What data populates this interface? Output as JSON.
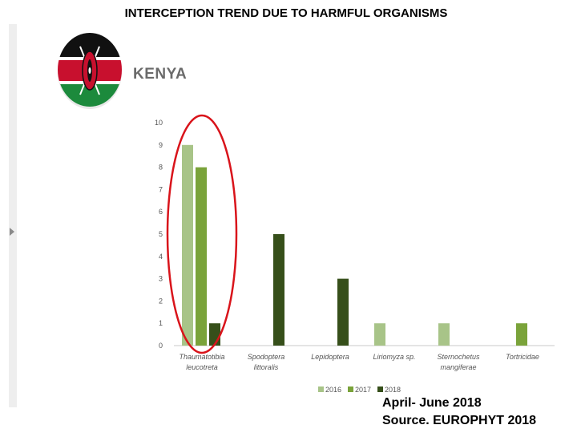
{
  "header": {
    "title": "INTERCEPTION TREND DUE TO HARMFUL ORGANISMS"
  },
  "flag": {
    "country": "KENYA",
    "colors": {
      "black": "#111111",
      "red": "#c8102e",
      "green": "#1c8a3c",
      "white": "#ffffff"
    }
  },
  "colors": {
    "series_2016": "#a8c488",
    "series_2017": "#7aa33a",
    "series_2018": "#364f1a",
    "highlight_ellipse": "#d9141b",
    "tick_text": "#555555"
  },
  "chart_data": {
    "type": "bar",
    "categories": [
      [
        "Thaumatotibia",
        "leucotreta"
      ],
      [
        "Spodoptera",
        "littoralis"
      ],
      [
        "Lepidoptera"
      ],
      [
        "Liriomyza sp."
      ],
      [
        "Sternochetus",
        "mangiferae"
      ],
      [
        "Tortricidae"
      ]
    ],
    "series": [
      {
        "name": "2016",
        "values": [
          9,
          0,
          0,
          1,
          1,
          0
        ]
      },
      {
        "name": "2017",
        "values": [
          8,
          0,
          0,
          0,
          0,
          1
        ]
      },
      {
        "name": "2018",
        "values": [
          1,
          5,
          3,
          0,
          0,
          0
        ]
      }
    ],
    "ylim": [
      0,
      10
    ],
    "yticks": [
      "0",
      "1",
      "2",
      "3",
      "4",
      "5",
      "6",
      "7",
      "8",
      "9",
      "10"
    ],
    "xlabel": "",
    "ylabel": "",
    "grid": false,
    "legend": "bottom",
    "annotation": "red ellipse highlighting Thaumatotibia leucotreta"
  },
  "footer": {
    "period": "April- June 2018",
    "source": "Source. EUROPHYT 2018"
  }
}
